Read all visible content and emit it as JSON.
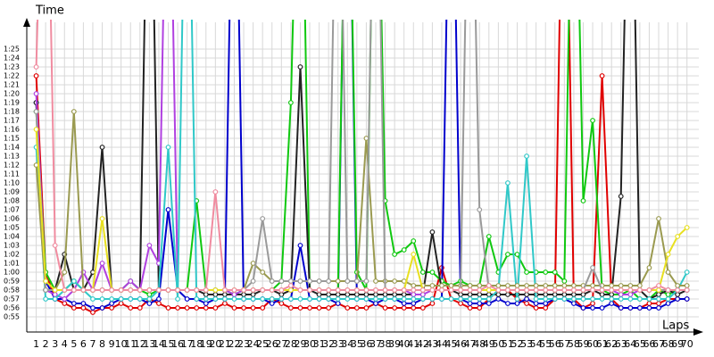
{
  "chart_data": {
    "type": "line",
    "y_label": "Time",
    "x_label": "Laps",
    "x": [
      1,
      2,
      3,
      4,
      5,
      6,
      7,
      8,
      9,
      10,
      11,
      12,
      13,
      14,
      15,
      16,
      17,
      18,
      19,
      20,
      21,
      22,
      23,
      24,
      25,
      26,
      27,
      28,
      29,
      30,
      31,
      32,
      33,
      34,
      35,
      36,
      37,
      38,
      39,
      40,
      41,
      42,
      43,
      44,
      45,
      46,
      47,
      48,
      49,
      50,
      51,
      52,
      53,
      54,
      55,
      56,
      57,
      58,
      59,
      60,
      61,
      62,
      63,
      64,
      65,
      66,
      67,
      68,
      69,
      70
    ],
    "xlim": [
      0,
      70.5
    ],
    "xticks": [
      1,
      2,
      3,
      4,
      5,
      6,
      7,
      8,
      9,
      10,
      11,
      12,
      13,
      14,
      15,
      16,
      17,
      18,
      19,
      20,
      21,
      22,
      23,
      24,
      25,
      26,
      27,
      28,
      29,
      30,
      31,
      32,
      33,
      34,
      35,
      36,
      37,
      38,
      39,
      40,
      41,
      42,
      43,
      44,
      45,
      46,
      47,
      48,
      49,
      50,
      51,
      52,
      53,
      54,
      55,
      56,
      57,
      58,
      59,
      60,
      61,
      62,
      63,
      64,
      65,
      66,
      67,
      68,
      69,
      70
    ],
    "ylim": [
      54,
      88
    ],
    "yticks": [
      {
        "value": 55,
        "label": "0:55"
      },
      {
        "value": 56,
        "label": "0:56"
      },
      {
        "value": 57,
        "label": "0:57"
      },
      {
        "value": 58,
        "label": "0:58"
      },
      {
        "value": 59,
        "label": "0:59"
      },
      {
        "value": 60,
        "label": "1:00"
      },
      {
        "value": 61,
        "label": "1:01"
      },
      {
        "value": 62,
        "label": "1:02"
      },
      {
        "value": 63,
        "label": "1:03"
      },
      {
        "value": 64,
        "label": "1:04"
      },
      {
        "value": 65,
        "label": "1:05"
      },
      {
        "value": 66,
        "label": "1:06"
      },
      {
        "value": 67,
        "label": "1:07"
      },
      {
        "value": 68,
        "label": "1:08"
      },
      {
        "value": 69,
        "label": "1:09"
      },
      {
        "value": 70,
        "label": "1:10"
      },
      {
        "value": 71,
        "label": "1:11"
      },
      {
        "value": 72,
        "label": "1:12"
      },
      {
        "value": 73,
        "label": "1:13"
      },
      {
        "value": 74,
        "label": "1:14"
      },
      {
        "value": 75,
        "label": "1:15"
      },
      {
        "value": 76,
        "label": "1:16"
      },
      {
        "value": 77,
        "label": "1:17"
      },
      {
        "value": 78,
        "label": "1:18"
      },
      {
        "value": 79,
        "label": "1:19"
      },
      {
        "value": 80,
        "label": "1:20"
      },
      {
        "value": 81,
        "label": "1:21"
      },
      {
        "value": 82,
        "label": "1:22"
      },
      {
        "value": 83,
        "label": "1:23"
      },
      {
        "value": 84,
        "label": "1:24"
      },
      {
        "value": 85,
        "label": "1:25"
      }
    ],
    "grid": true,
    "series": [
      {
        "color": "#e00000",
        "values": [
          82,
          60,
          57,
          56.5,
          56,
          56,
          55.5,
          56,
          56,
          56.5,
          56,
          56,
          57,
          56.5,
          56,
          56,
          56,
          56,
          56,
          56,
          56.5,
          56,
          56,
          56,
          56,
          57,
          56.5,
          56,
          56,
          56,
          56,
          56,
          56.5,
          56,
          56,
          56,
          56.5,
          56,
          56,
          56,
          56,
          56,
          56.5,
          60.5,
          57,
          56.5,
          56,
          56,
          57,
          58,
          58,
          57,
          56.5,
          56,
          56,
          57,
          120,
          57,
          56,
          56.5,
          82,
          57,
          56,
          56,
          56,
          56.5,
          56.5,
          57,
          57,
          57
        ]
      },
      {
        "color": "#0000cc",
        "values": [
          79,
          59,
          57,
          57,
          56.5,
          56.5,
          56,
          56,
          56.5,
          57,
          57,
          57,
          56.5,
          57,
          67,
          58,
          57,
          57,
          56.5,
          57,
          57,
          120,
          57,
          57,
          57,
          56.5,
          57,
          57,
          63,
          57,
          57,
          57,
          56.5,
          120,
          57,
          57,
          56.5,
          57,
          57,
          56.5,
          56.5,
          57,
          57,
          57,
          120,
          57,
          56.5,
          56.5,
          56.5,
          57,
          56.5,
          56.5,
          57,
          56.5,
          56.5,
          57,
          57,
          56.5,
          56,
          56,
          56,
          56.5,
          56,
          56,
          56,
          56,
          56,
          56.5,
          57,
          57
        ]
      },
      {
        "color": "#10c810",
        "values": [
          78,
          60,
          58,
          58,
          59,
          58,
          58,
          58,
          58,
          58,
          59,
          58,
          57.5,
          58,
          58,
          58,
          58,
          68,
          58,
          58,
          58,
          57.5,
          58,
          58,
          58,
          58,
          59,
          79,
          120,
          58,
          58,
          58,
          58,
          120,
          60,
          58,
          120,
          68,
          62,
          62.5,
          63.5,
          60,
          60,
          59,
          58.5,
          59,
          58.5,
          58.5,
          64,
          60,
          62,
          62,
          60,
          60,
          60,
          60,
          59,
          120,
          68,
          77,
          58,
          57.5,
          57.5,
          58,
          57,
          57,
          58,
          57.5,
          58,
          58
        ]
      },
      {
        "color": "#222222",
        "values": [
          79,
          58,
          58,
          62,
          58,
          58,
          60,
          74,
          58,
          58,
          58,
          58,
          120,
          58,
          58,
          58,
          58,
          58,
          57.5,
          57.5,
          57.5,
          57.5,
          57.5,
          57.5,
          58,
          58,
          57.5,
          58,
          83,
          58,
          57.5,
          57.5,
          57.5,
          57.5,
          57.5,
          57.5,
          57.5,
          57.5,
          57.5,
          57.5,
          57.5,
          57.5,
          64.5,
          58,
          58,
          57.5,
          57.5,
          57.5,
          57.5,
          57.5,
          57.5,
          57.5,
          57.5,
          57.5,
          57.5,
          57.5,
          57.5,
          57.5,
          57.5,
          58,
          57.5,
          57.5,
          68.5,
          120,
          58,
          57,
          57.5,
          58,
          57.5,
          58
        ]
      },
      {
        "color": "#b040e0",
        "values": [
          80,
          58,
          57.5,
          57,
          58,
          60,
          58,
          61,
          58,
          58,
          59,
          58,
          63,
          61,
          120,
          58,
          58,
          58,
          58,
          58,
          58,
          57.5,
          58,
          58,
          58,
          58,
          58,
          58,
          58,
          58,
          58,
          58,
          58,
          58,
          58,
          58,
          58,
          58,
          58,
          58,
          57.5,
          57.5,
          58,
          58,
          58,
          58,
          58,
          58,
          58,
          58,
          58,
          58,
          58,
          58,
          58,
          58,
          58,
          58,
          58,
          58,
          58,
          58,
          57.5,
          57.5,
          58,
          58,
          58,
          58,
          58,
          58
        ]
      },
      {
        "color": "#30c8c8",
        "values": [
          74,
          57,
          57,
          58,
          59,
          58,
          57,
          57,
          57,
          57,
          57,
          57,
          57,
          58,
          74,
          57,
          120,
          57,
          57,
          57,
          57,
          57,
          57,
          57,
          57,
          57,
          57,
          57,
          57,
          57,
          57,
          57,
          57,
          57,
          57,
          57,
          57,
          57,
          57,
          57,
          57,
          57,
          57,
          57,
          57,
          57,
          57,
          57,
          57,
          58,
          70,
          57,
          73,
          57,
          57,
          57,
          57,
          57,
          57,
          57,
          57,
          57,
          57,
          57,
          57,
          57,
          57,
          57,
          58,
          60
        ]
      },
      {
        "color": "#9a9a50",
        "values": [
          72,
          58,
          58,
          60,
          78,
          58,
          58,
          58,
          58,
          58,
          58,
          58,
          58,
          58,
          58,
          58,
          58,
          58,
          58,
          58,
          58,
          58,
          58,
          61,
          60,
          59,
          59,
          59,
          59,
          59,
          59,
          59,
          59,
          59,
          59,
          75,
          59,
          59,
          59,
          59,
          58.5,
          58.5,
          58.5,
          58.5,
          58.5,
          58.5,
          58.5,
          58.5,
          58.5,
          58.5,
          58.5,
          58.5,
          58.5,
          58.5,
          58.5,
          58.5,
          58.5,
          58.5,
          58.5,
          58.5,
          58.5,
          58.5,
          58.5,
          58.5,
          58.5,
          60.5,
          66,
          60,
          58.5,
          58.5
        ]
      },
      {
        "color": "#9a9a9a",
        "values": [
          78,
          58,
          58,
          58,
          58,
          58,
          58,
          58,
          58,
          58,
          58,
          58,
          58,
          58,
          58,
          58,
          58,
          58,
          58,
          58,
          58,
          58,
          58,
          59,
          66,
          59,
          59,
          59,
          59,
          59,
          59,
          59,
          120,
          59,
          59,
          59,
          120,
          58,
          58,
          58,
          58,
          58,
          58,
          58,
          58,
          58,
          120,
          67,
          58,
          58,
          58,
          58,
          58,
          58,
          58,
          58,
          58,
          58,
          58,
          60.5,
          58,
          58,
          58,
          58,
          58,
          58,
          58,
          58,
          58,
          58
        ]
      },
      {
        "color": "#e8e020",
        "values": [
          76,
          59,
          58,
          58,
          58,
          58,
          58,
          66,
          58,
          58,
          58,
          58,
          58,
          58,
          58,
          58,
          58,
          58,
          58,
          58,
          58,
          58,
          58,
          58,
          58,
          58,
          58,
          58,
          58,
          58,
          58,
          58,
          58,
          58,
          58,
          58,
          58,
          58,
          58,
          58,
          62,
          58,
          58,
          58,
          58,
          58,
          58,
          58,
          58,
          58,
          58,
          58,
          58,
          58,
          58,
          58,
          58,
          58,
          58,
          58,
          58,
          58,
          58,
          58,
          58,
          58,
          58,
          62,
          64,
          65
        ]
      },
      {
        "color": "#f08ca0",
        "values": [
          83,
          120,
          63,
          58,
          58,
          58,
          58,
          58,
          58,
          58,
          58,
          58,
          58,
          58,
          58,
          58,
          58,
          58,
          58,
          69,
          58,
          58,
          58,
          58,
          58,
          58,
          58,
          58.5,
          58,
          58,
          58,
          58,
          58,
          58,
          58,
          58,
          58,
          58,
          58,
          58,
          58,
          58,
          58,
          58,
          58,
          58,
          58,
          58,
          58.5,
          58,
          58,
          58,
          58,
          58,
          58,
          58,
          58,
          58,
          58,
          58,
          58,
          58,
          58,
          58,
          58,
          58,
          58.5,
          58,
          58,
          58
        ]
      }
    ]
  }
}
